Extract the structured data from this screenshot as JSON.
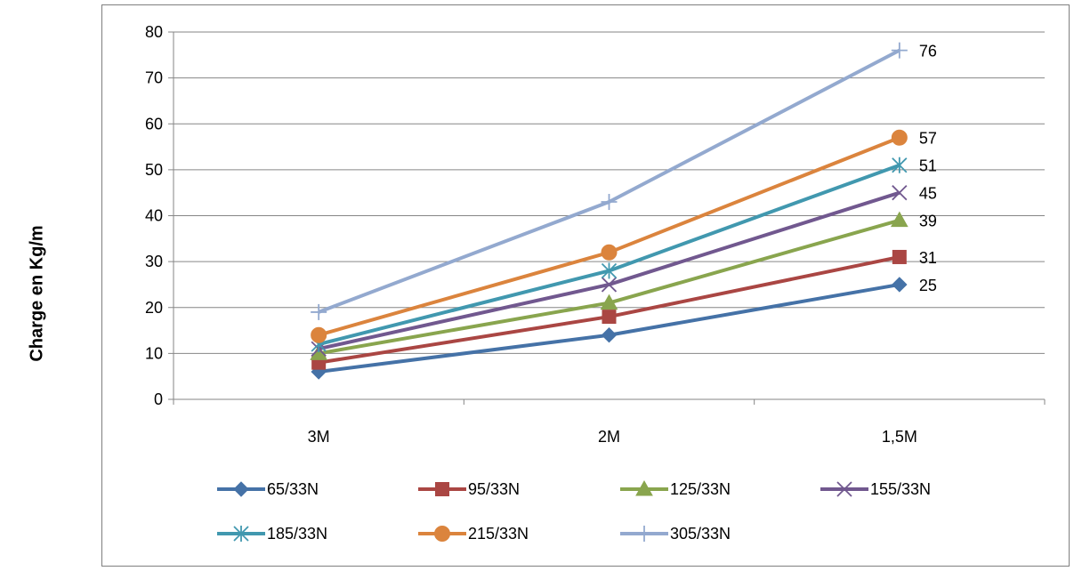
{
  "chart_data": {
    "type": "line",
    "ylabel": "Charge en Kg/m",
    "xlabel": "",
    "title": "",
    "categories": [
      "3M",
      "2M",
      "1,5M"
    ],
    "ylim": [
      0,
      80
    ],
    "yticks": [
      0,
      10,
      20,
      30,
      40,
      50,
      60,
      70,
      80
    ],
    "grid": "horizontal major",
    "legend_position": "bottom",
    "series": [
      {
        "name": "65/33N",
        "values": [
          6,
          14,
          25
        ],
        "color": "#4572A7",
        "marker": "diamond",
        "end_label": "25"
      },
      {
        "name": "95/33N",
        "values": [
          8,
          18,
          31
        ],
        "color": "#AA4643",
        "marker": "square",
        "end_label": "31"
      },
      {
        "name": "125/33N",
        "values": [
          10,
          21,
          39
        ],
        "color": "#89A54E",
        "marker": "triangle",
        "end_label": "39"
      },
      {
        "name": "155/33N",
        "values": [
          11,
          25,
          45
        ],
        "color": "#71588F",
        "marker": "x",
        "end_label": "45"
      },
      {
        "name": "185/33N",
        "values": [
          12,
          28,
          51
        ],
        "color": "#4198AF",
        "marker": "asterisk",
        "end_label": "51"
      },
      {
        "name": "215/33N",
        "values": [
          14,
          32,
          57
        ],
        "color": "#DB843D",
        "marker": "circle",
        "end_label": "57"
      },
      {
        "name": "305/33N",
        "values": [
          19,
          43,
          76
        ],
        "color": "#93A9CF",
        "marker": "plus",
        "end_label": "76"
      }
    ]
  }
}
